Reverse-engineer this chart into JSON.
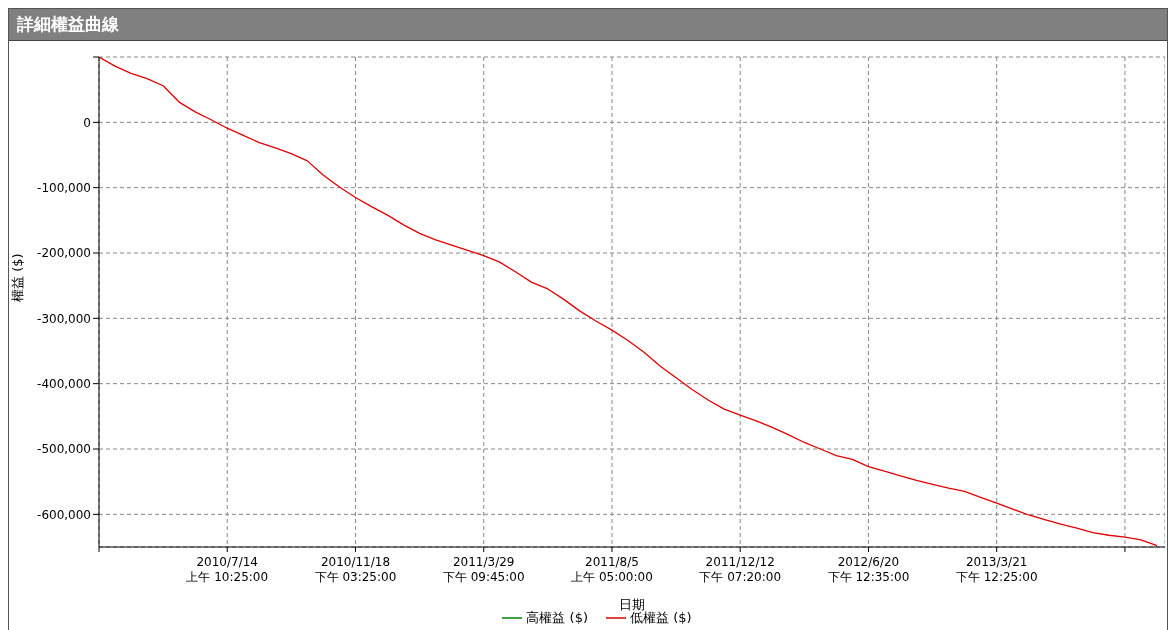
{
  "chart_data": {
    "type": "line",
    "title": "詳細權益曲線",
    "xlabel": "日期",
    "ylabel": "權益 ($)",
    "categories": [
      null,
      null,
      null,
      null,
      null,
      null,
      null,
      null,
      "2010/7/14 上午 10:25:00",
      null,
      null,
      null,
      null,
      null,
      null,
      null,
      "2010/11/18 下午 03:25:00",
      null,
      null,
      null,
      null,
      null,
      null,
      null,
      "2011/3/29 下午 09:45:00",
      null,
      null,
      null,
      null,
      null,
      null,
      null,
      "2011/8/5 上午 05:00:00",
      null,
      null,
      null,
      null,
      null,
      null,
      null,
      "2011/12/12 下午 07:20:00",
      null,
      null,
      null,
      null,
      null,
      null,
      null,
      "2012/6/20 下午 12:35:00",
      null,
      null,
      null,
      null,
      null,
      null,
      null,
      "2013/3/21 下午 12:25:00",
      null,
      null,
      null,
      null,
      null,
      null,
      null,
      null,
      null,
      null
    ],
    "series": [
      {
        "name": "高權益 ($)",
        "color": "#008000",
        "values": [
          null,
          null,
          null,
          null,
          null,
          null,
          null,
          null,
          null,
          null,
          null,
          null,
          null,
          null,
          null,
          null,
          null,
          null,
          null,
          null,
          null,
          null,
          null,
          null,
          null,
          null,
          null,
          null,
          null,
          null,
          null,
          null,
          null,
          null,
          null,
          null,
          null,
          null,
          null,
          null,
          null,
          null,
          null,
          null,
          null,
          null,
          null,
          null,
          null,
          null,
          null,
          null,
          null,
          null,
          null,
          null,
          null,
          null,
          null,
          null,
          null,
          null,
          null,
          null,
          null,
          null,
          null
        ]
      },
      {
        "name": "低權益 ($)",
        "color": "#e00000",
        "values": [
          100000,
          86000,
          75000,
          67000,
          56000,
          31000,
          16000,
          4000,
          -9000,
          -20000,
          -31000,
          -39000,
          -48000,
          -59000,
          -81000,
          -99000,
          -115000,
          -129000,
          -142000,
          -157000,
          -170000,
          -180000,
          -188000,
          -196000,
          -204000,
          -214000,
          -229000,
          -245000,
          -255000,
          -271000,
          -289000,
          -304000,
          -318000,
          -334000,
          -352000,
          -373000,
          -391000,
          -409000,
          -425000,
          -439000,
          -448000,
          -457000,
          -467000,
          -478000,
          -490000,
          -500000,
          -510000,
          -516000,
          -527000,
          -534000,
          -541000,
          -548000,
          -554000,
          -560000,
          -565000,
          -574000,
          -583000,
          -592000,
          -601000,
          -608000,
          -615000,
          -621000,
          -628000,
          -632000,
          -635000,
          -639000,
          -648000
        ]
      }
    ],
    "ylim": [
      -650000,
      100000
    ],
    "yticks": [
      {
        "value": 100000,
        "label": null
      },
      0,
      {
        "value": -100000,
        "label": "-100,000"
      },
      {
        "value": -200000,
        "label": "-200,000"
      },
      {
        "value": -300000,
        "label": "-300,000"
      },
      {
        "value": -400000,
        "label": "-400,000"
      },
      {
        "value": -500000,
        "label": "-500,000"
      },
      {
        "value": -600000,
        "label": "-600,000"
      }
    ],
    "grid": true,
    "legend": "bottom",
    "marker": "none",
    "line_style": "solid"
  }
}
